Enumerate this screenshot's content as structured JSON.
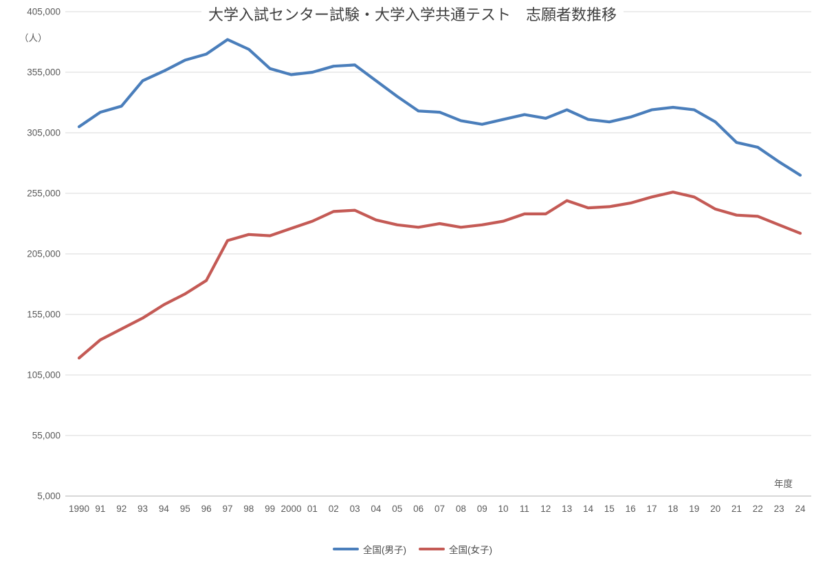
{
  "title": "大学入試センター試験・大学入学共通テスト　志願者数推移",
  "y_axis_unit": "（人）",
  "x_axis_unit": "年度",
  "colors": {
    "male_line": "#4A7EBB",
    "female_line": "#C45A55",
    "gridline": "#D9D9D9",
    "axis_line": "#BFBFBF",
    "tick_text": "#595959",
    "title_text": "#3F3F3F",
    "background": "#FFFFFF"
  },
  "chart_data": {
    "type": "line",
    "title": "大学入試センター試験・大学入学共通テスト　志願者数推移",
    "xlabel": "年度",
    "ylabel": "（人）",
    "ylim": [
      5000,
      405000
    ],
    "ytick_step": 50000,
    "grid": true,
    "legend_position": "bottom",
    "categories": [
      "1990",
      "91",
      "92",
      "93",
      "94",
      "95",
      "96",
      "97",
      "98",
      "99",
      "2000",
      "01",
      "02",
      "03",
      "04",
      "05",
      "06",
      "07",
      "08",
      "09",
      "10",
      "11",
      "12",
      "13",
      "14",
      "15",
      "16",
      "17",
      "18",
      "19",
      "20",
      "21",
      "22",
      "23",
      "24"
    ],
    "series": [
      {
        "key": "male",
        "name": "全国(男子)",
        "color": "#4A7EBB",
        "values": [
          310000,
          322000,
          327000,
          348000,
          356000,
          365000,
          370000,
          382000,
          374000,
          358000,
          353000,
          355000,
          360000,
          361000,
          348000,
          335000,
          323000,
          322000,
          315000,
          312000,
          316000,
          320000,
          317000,
          324000,
          316000,
          314000,
          318000,
          324000,
          326000,
          324000,
          314000,
          297000,
          293000,
          281000,
          270000
        ]
      },
      {
        "key": "female",
        "name": "全国(女子)",
        "color": "#C45A55",
        "values": [
          119000,
          134000,
          143000,
          152000,
          163000,
          172000,
          183000,
          216000,
          221000,
          220000,
          226000,
          232000,
          240000,
          241000,
          233000,
          229000,
          227000,
          230000,
          227000,
          229000,
          232000,
          238000,
          238000,
          249000,
          243000,
          244000,
          247000,
          252000,
          256000,
          252000,
          242000,
          237000,
          236000,
          229000,
          222000
        ]
      }
    ]
  }
}
